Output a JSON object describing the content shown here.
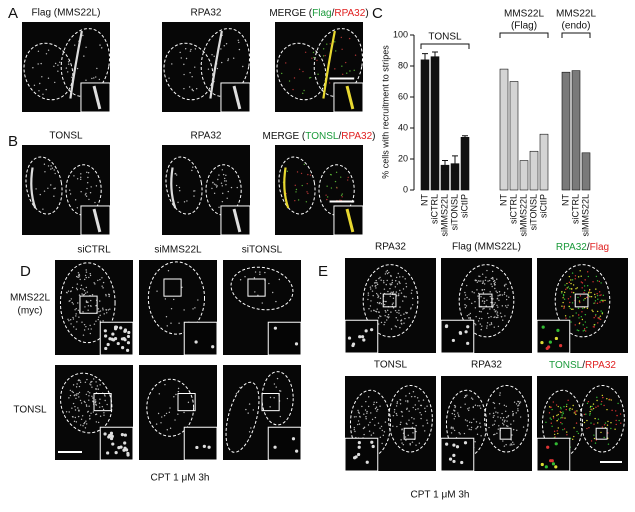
{
  "panel_letters": [
    "A",
    "B",
    "C",
    "D",
    "E"
  ],
  "panel_a": {
    "labels": [
      "Flag (MMS22L)",
      "RPA32"
    ],
    "merge": [
      "MERGE (",
      "Flag",
      "/",
      "RPA32",
      ")"
    ]
  },
  "panel_b": {
    "labels": [
      "TONSL",
      "RPA32"
    ],
    "merge": [
      "MERGE (",
      "TONSL",
      "/",
      "RPA32",
      ")"
    ]
  },
  "panel_d": {
    "columns": [
      "siCTRL",
      "siMMS22L",
      "siTONSL"
    ],
    "rows": [
      [
        "MMS22L",
        "(myc)"
      ],
      [
        "TONSL"
      ]
    ],
    "caption": "CPT 1 μM 3h"
  },
  "panel_e": {
    "row1": [
      "RPA32",
      "Flag (MMS22L)"
    ],
    "merge1": [
      "RPA32",
      "/",
      "Flag"
    ],
    "row2": [
      "TONSL",
      "RPA32"
    ],
    "merge2": [
      "TONSL",
      "/",
      "RPA32"
    ],
    "caption": "CPT 1 μM 3h"
  },
  "chart_data": {
    "type": "bar",
    "ylabel": "% cells with recruitment to stripes",
    "ylim": [
      0,
      100
    ],
    "yticks": [
      0,
      20,
      40,
      60,
      80,
      100
    ],
    "groups": [
      {
        "name": [
          "TONSL"
        ],
        "color": "#111111",
        "categories": [
          "NT",
          "siCTRL",
          "siMMS22L",
          "siTONSL",
          "siCtIP"
        ],
        "values": [
          84,
          86,
          16,
          17,
          34
        ],
        "errors": [
          4,
          3,
          3,
          5,
          1
        ]
      },
      {
        "name": [
          "MMS22L",
          "(Flag)"
        ],
        "color": "#d4d4d4",
        "categories": [
          "NT",
          "siCTRL",
          "siMMS22L",
          "siTONSL",
          "siCtIP"
        ],
        "values": [
          78,
          70,
          19,
          25,
          36
        ]
      },
      {
        "name": [
          "MMS22L",
          "(endo)"
        ],
        "color": "#7a7a7a",
        "categories": [
          "NT",
          "siCTRL",
          "siMMS22L"
        ],
        "values": [
          76,
          77,
          24
        ]
      }
    ]
  }
}
